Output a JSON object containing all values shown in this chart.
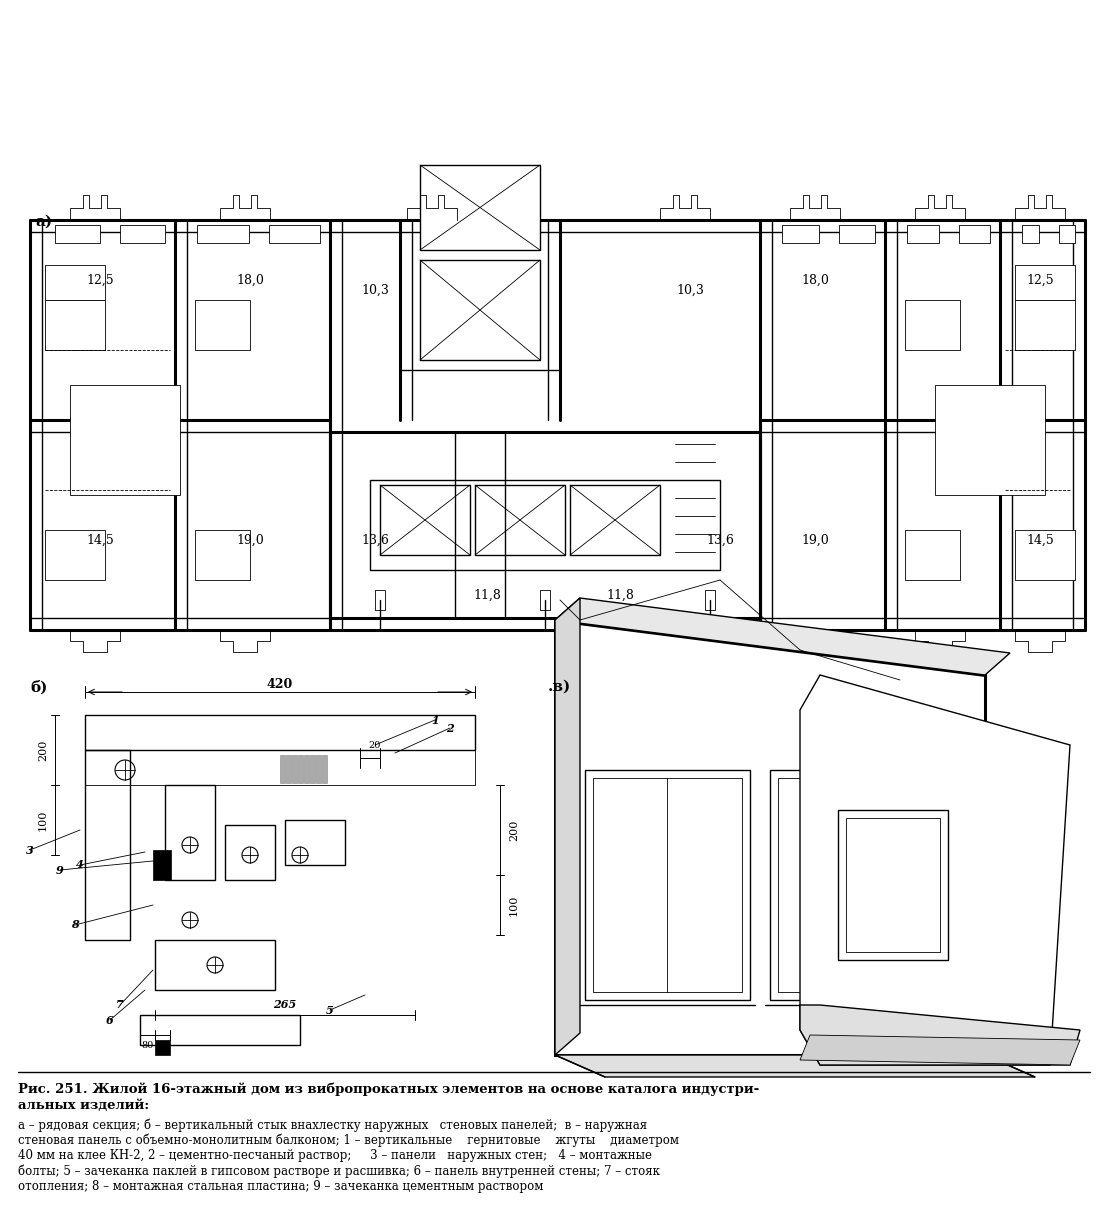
{
  "title_line1": "Рис. 251. Жилой 16-этажный дом из вибропрокатных элементов на основе каталога индустри-",
  "title_line2": "альных изделий:",
  "caption_line1": "а – рядовая секция; б – вертикальный стык внахлестку наружных   стеновых панелей;  в – наружная",
  "caption_line2": "стеновая панель с объемно-монолитным балконом; 1 – вертикальные    гернитовые    жгуты    диаметром",
  "caption_line3": "40 мм на клее КН-2, 2 – цементно-песчаный раствор;     3 – панели   наружных стен;   4 – монтажные",
  "caption_line4": "болты; 5 – зачеканка паклей в гипсовом растворе и расшивка; 6 – панель внутренней стены; 7 – стояк",
  "caption_line5": "отопления; 8 – монтажная стальная пластина; 9 – зачеканка цементным раствором",
  "bg_color": "#ffffff"
}
